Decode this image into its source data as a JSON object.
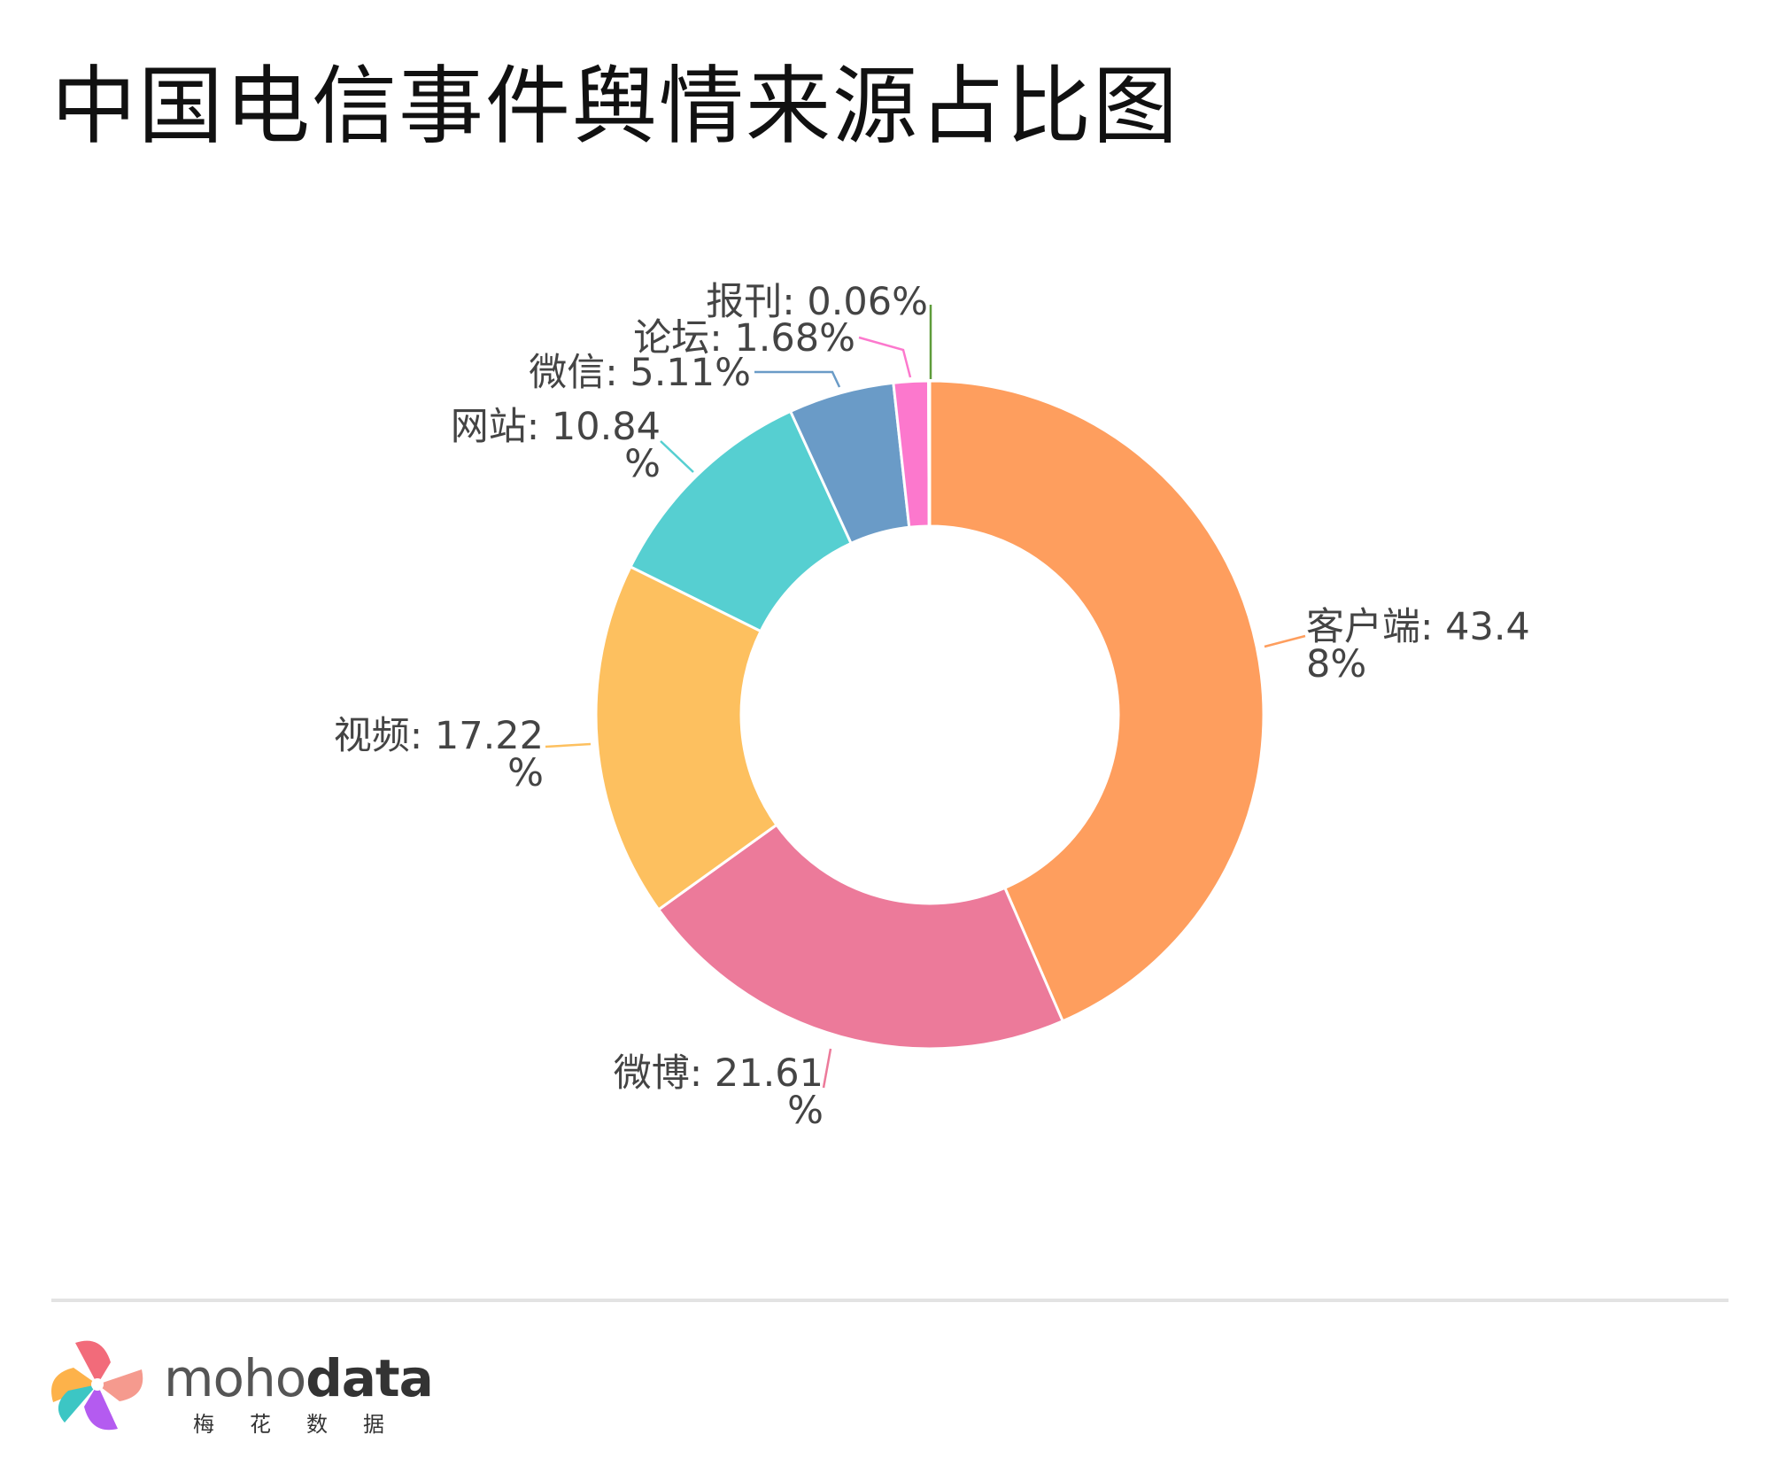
{
  "title": "中国电信事件舆情来源占比图",
  "chart_data": {
    "type": "pie",
    "variant": "donut",
    "start": "12 o'clock, clockwise",
    "slices": [
      {
        "name": "客户端",
        "value": 43.48,
        "label_line1": "客户端: 43.4",
        "label_line2": "8%",
        "color": "#FE9E5E"
      },
      {
        "name": "微博",
        "value": 21.61,
        "label_line1": "微博: 21.61",
        "label_line2": "%",
        "color": "#EC7A9A"
      },
      {
        "name": "视频",
        "value": 17.22,
        "label_line1": "视频: 17.22",
        "label_line2": "%",
        "color": "#FDC05F"
      },
      {
        "name": "网站",
        "value": 10.84,
        "label_line1": "网站: 10.84",
        "label_line2": "%",
        "color": "#56CFD1"
      },
      {
        "name": "微信",
        "value": 5.11,
        "label_line1": "微信: 5.11%",
        "label_line2": "",
        "color": "#6A9BC7"
      },
      {
        "name": "论坛",
        "value": 1.68,
        "label_line1": "论坛: 1.68%",
        "label_line2": "",
        "color": "#FC78CD"
      },
      {
        "name": "报刊",
        "value": 0.06,
        "label_line1": "报刊: 0.06%",
        "label_line2": "",
        "color": "#5E9C3A"
      }
    ]
  },
  "brand": {
    "name_part1": "moho",
    "name_part2": "data",
    "subtitle": "梅花数据",
    "logo_icon": "pinwheel-logo-icon"
  }
}
